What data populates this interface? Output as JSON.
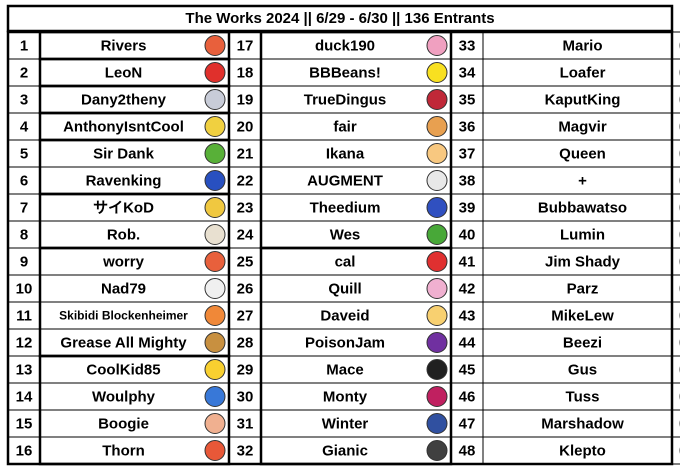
{
  "header": {
    "title": "The Works 2024 || 6/29 - 6/30 || 136 Entrants"
  },
  "table": {
    "rows": [
      {
        "rank": 1,
        "name": "Rivers"
      },
      {
        "rank": 2,
        "name": "LeoN"
      },
      {
        "rank": 3,
        "name": "Dany2theny"
      },
      {
        "rank": 4,
        "name": "AnthonyIsntCool"
      },
      {
        "rank": 5,
        "name": "Sir Dank"
      },
      {
        "rank": 6,
        "name": "Ravenking"
      },
      {
        "rank": 7,
        "name": "サイKoD"
      },
      {
        "rank": 8,
        "name": "Rob."
      },
      {
        "rank": 9,
        "name": "worry"
      },
      {
        "rank": 10,
        "name": "Nad79"
      },
      {
        "rank": 11,
        "name": "Skibidi Blockenheimer"
      },
      {
        "rank": 12,
        "name": "Grease All Mighty"
      },
      {
        "rank": 13,
        "name": "CoolKid85"
      },
      {
        "rank": 14,
        "name": "Woulphy"
      },
      {
        "rank": 15,
        "name": "Boogie"
      },
      {
        "rank": 16,
        "name": "Thorn"
      },
      {
        "rank": 17,
        "name": "duck190"
      },
      {
        "rank": 18,
        "name": "BBBeans!"
      },
      {
        "rank": 19,
        "name": "TrueDingus"
      },
      {
        "rank": 20,
        "name": "fair"
      },
      {
        "rank": 21,
        "name": "Ikana"
      },
      {
        "rank": 22,
        "name": "AUGMENT"
      },
      {
        "rank": 23,
        "name": "Theedium"
      },
      {
        "rank": 24,
        "name": "Wes"
      },
      {
        "rank": 25,
        "name": "cal"
      },
      {
        "rank": 26,
        "name": "Quill"
      },
      {
        "rank": 27,
        "name": "Daveid"
      },
      {
        "rank": 28,
        "name": "PoisonJam"
      },
      {
        "rank": 29,
        "name": "Mace"
      },
      {
        "rank": 30,
        "name": "Monty"
      },
      {
        "rank": 31,
        "name": "Winter"
      },
      {
        "rank": 32,
        "name": "Gianic"
      },
      {
        "rank": 33,
        "name": "Mario"
      },
      {
        "rank": 34,
        "name": "Loafer"
      },
      {
        "rank": 35,
        "name": "KaputKing"
      },
      {
        "rank": 36,
        "name": "Magvir"
      },
      {
        "rank": 37,
        "name": "Queen"
      },
      {
        "rank": 38,
        "name": "+"
      },
      {
        "rank": 39,
        "name": "Bubbawatso"
      },
      {
        "rank": 40,
        "name": "Lumin"
      },
      {
        "rank": 41,
        "name": "Jim Shady"
      },
      {
        "rank": 42,
        "name": "Parz"
      },
      {
        "rank": 43,
        "name": "MikeLew"
      },
      {
        "rank": 44,
        "name": "Beezi"
      },
      {
        "rank": 45,
        "name": "Gus"
      },
      {
        "rank": 46,
        "name": "Tuss"
      },
      {
        "rank": 47,
        "name": "Marshadow"
      },
      {
        "rank": 48,
        "name": "Klepto"
      }
    ]
  }
}
